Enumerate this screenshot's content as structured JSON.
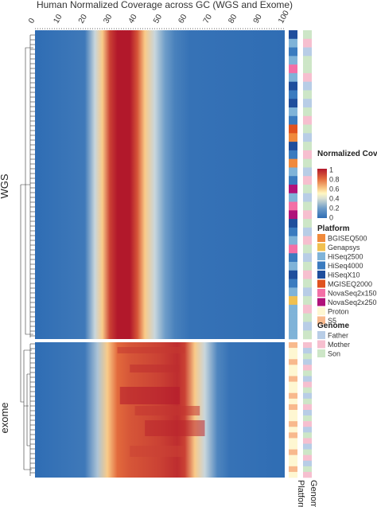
{
  "chart_data": {
    "type": "heatmap",
    "title": "Human Normalized Coverage across GC (WGS and Exome)",
    "x_ticks": [
      0,
      10,
      20,
      30,
      40,
      50,
      60,
      70,
      80,
      90,
      100
    ],
    "xlim": [
      0,
      100
    ],
    "row_groups": [
      {
        "name": "WGS",
        "profile": [
          {
            "x": 0,
            "value": 0.0
          },
          {
            "x": 20,
            "value": 0.05
          },
          {
            "x": 24,
            "value": 0.35
          },
          {
            "x": 27,
            "value": 0.6
          },
          {
            "x": 30,
            "value": 0.9
          },
          {
            "x": 33,
            "value": 1.0
          },
          {
            "x": 38,
            "value": 1.0
          },
          {
            "x": 41,
            "value": 0.85
          },
          {
            "x": 44,
            "value": 0.6
          },
          {
            "x": 48,
            "value": 0.35
          },
          {
            "x": 52,
            "value": 0.2
          },
          {
            "x": 56,
            "value": 0.08
          },
          {
            "x": 62,
            "value": 0.02
          },
          {
            "x": 100,
            "value": 0.0
          }
        ]
      },
      {
        "name": "exome",
        "profile": [
          {
            "x": 0,
            "value": 0.0
          },
          {
            "x": 20,
            "value": 0.05
          },
          {
            "x": 25,
            "value": 0.3
          },
          {
            "x": 29,
            "value": 0.6
          },
          {
            "x": 33,
            "value": 0.8
          },
          {
            "x": 38,
            "value": 0.85
          },
          {
            "x": 50,
            "value": 0.9
          },
          {
            "x": 57,
            "value": 0.95
          },
          {
            "x": 60,
            "value": 0.9
          },
          {
            "x": 64,
            "value": 0.6
          },
          {
            "x": 68,
            "value": 0.35
          },
          {
            "x": 73,
            "value": 0.1
          },
          {
            "x": 78,
            "value": 0.02
          },
          {
            "x": 100,
            "value": 0.0
          }
        ]
      }
    ],
    "annotation_columns": [
      "Platform",
      "Genome"
    ],
    "legends": [
      {
        "title": "Normalized Coverage",
        "type": "gradient",
        "ticks": [
          "1",
          "0.8",
          "0.6",
          "0.4",
          "0.2",
          "0"
        ],
        "colors": [
          "#2f6db4",
          "#6f9fca",
          "#c8d6dc",
          "#fff7c2",
          "#f6b36b",
          "#e26a3c",
          "#b2182b"
        ]
      },
      {
        "title": "Platform",
        "type": "categorical",
        "items": [
          {
            "label": "BGISEQ500",
            "color": "#f08a3c"
          },
          {
            "label": "Genapsys",
            "color": "#f0c050"
          },
          {
            "label": "HiSeq2500",
            "color": "#7fb3d8"
          },
          {
            "label": "HiSeq4000",
            "color": "#3a7bbf"
          },
          {
            "label": "HiSeqX10",
            "color": "#1f4e9c"
          },
          {
            "label": "MGISEQ2000",
            "color": "#e0521f"
          },
          {
            "label": "NovaSeq2x150",
            "color": "#f36fa6"
          },
          {
            "label": "NovaSeq2x250",
            "color": "#b0127a"
          },
          {
            "label": "Proton",
            "color": "#fef7d2"
          },
          {
            "label": "S5",
            "color": "#f8b98d"
          }
        ]
      },
      {
        "title": "Genome",
        "type": "categorical",
        "items": [
          {
            "label": "Father",
            "color": "#b8cde6"
          },
          {
            "label": "Mother",
            "color": "#f6bfcf"
          },
          {
            "label": "Son",
            "color": "#cde6c7"
          }
        ]
      }
    ],
    "grid": false,
    "legend_placement": "right"
  }
}
